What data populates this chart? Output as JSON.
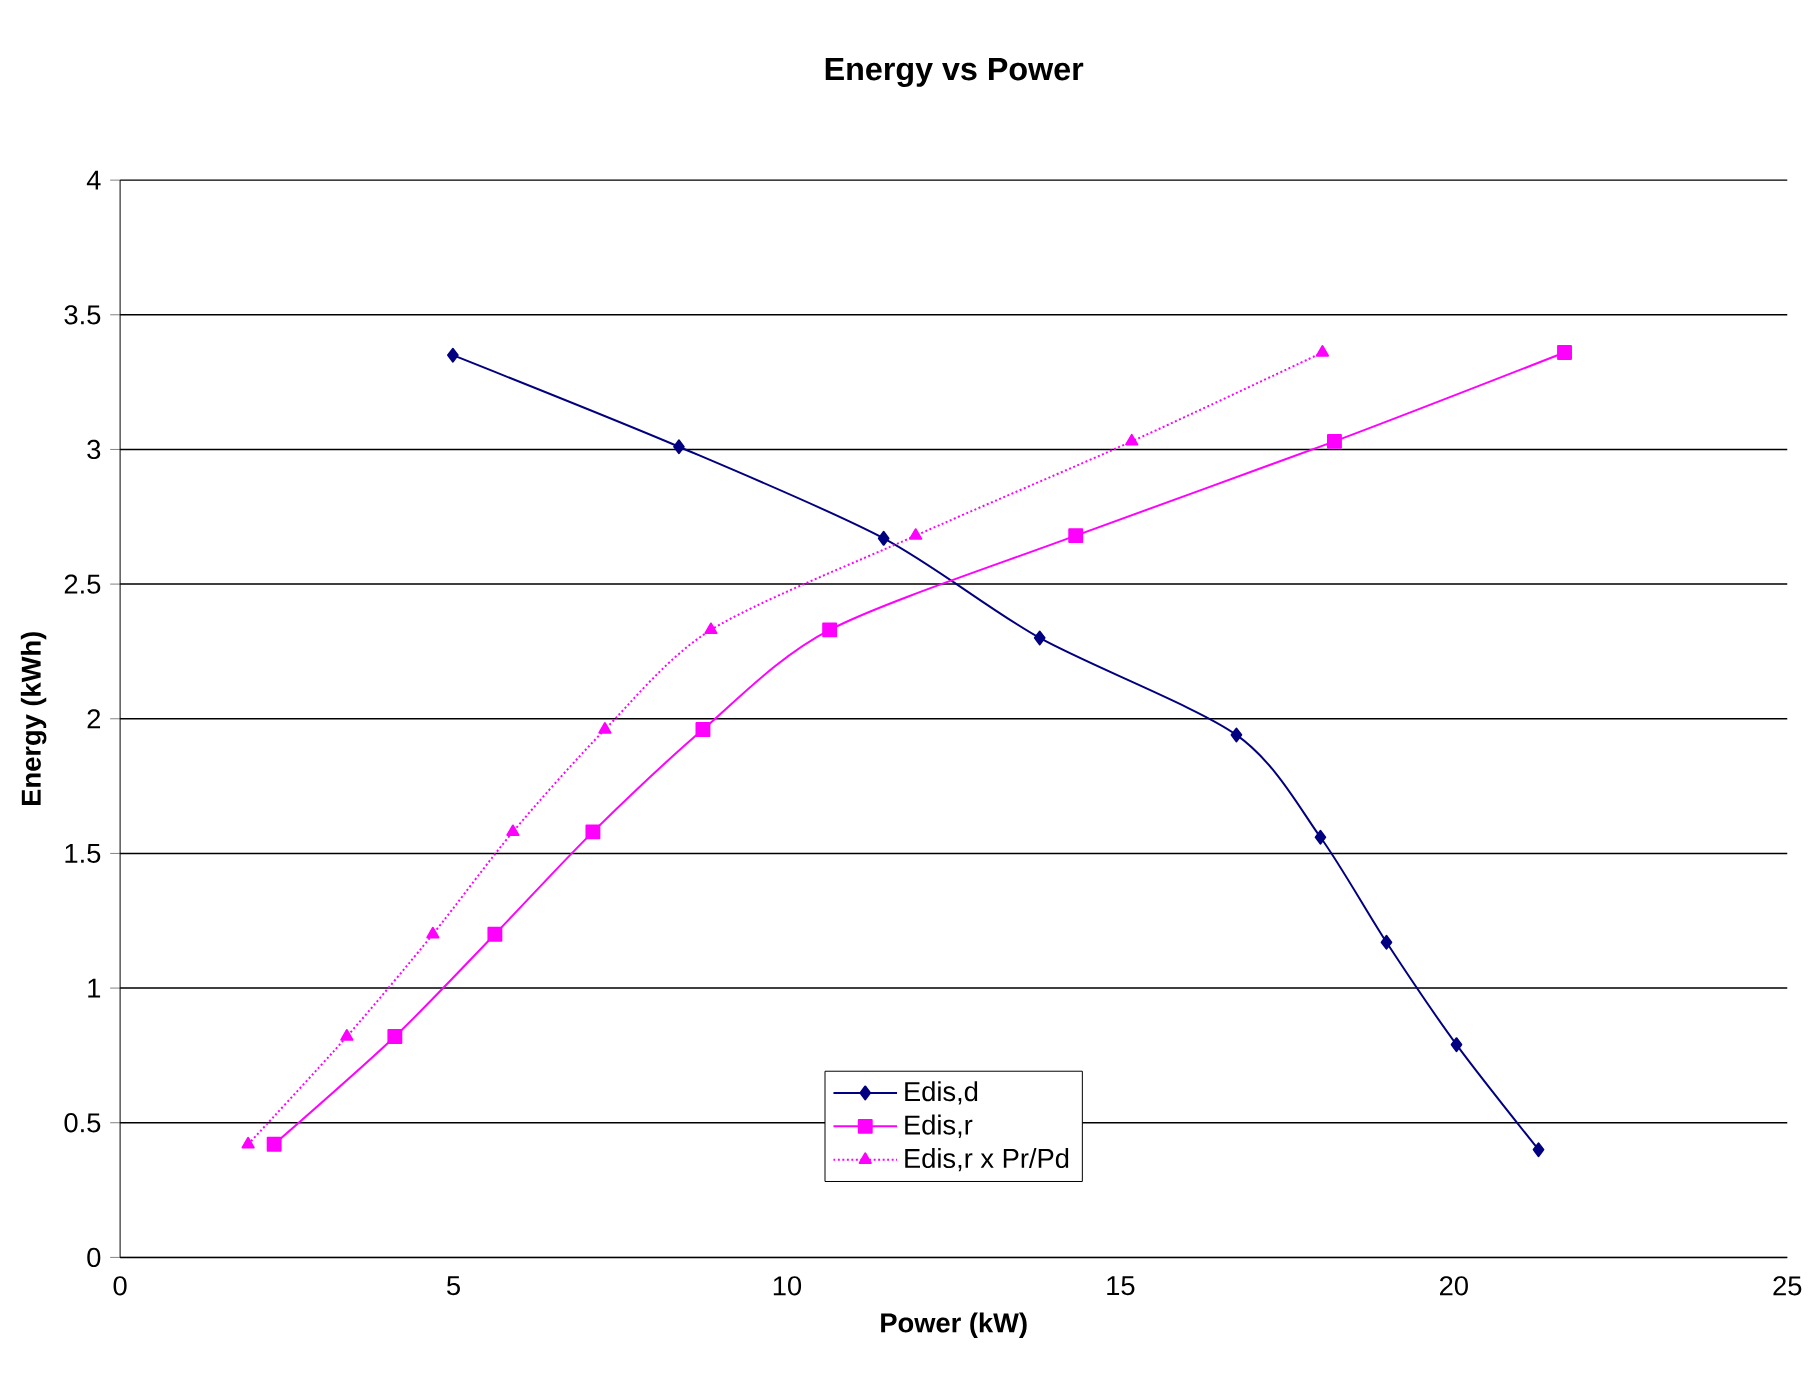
{
  "chart_data": {
    "type": "line",
    "title": "Energy vs Power",
    "xlabel": "Power (kW)",
    "ylabel": "Energy (kWh)",
    "xlim": [
      0,
      25
    ],
    "xticks": [
      0,
      5,
      10,
      15,
      20,
      25
    ],
    "ylim": [
      0,
      4
    ],
    "yticks": [
      0,
      0.5,
      1,
      1.5,
      2,
      2.5,
      3,
      3.5,
      4
    ],
    "grid": "y",
    "legend": "bottom",
    "series": [
      {
        "name": "Edis,d",
        "color": "#000080",
        "marker": "diamond",
        "line_style": "solid",
        "x": [
          4.99,
          8.38,
          11.45,
          13.79,
          16.74,
          18.0,
          18.99,
          20.04,
          21.27
        ],
        "values": [
          3.35,
          3.01,
          2.67,
          2.3,
          1.94,
          1.56,
          1.17,
          0.79,
          0.4
        ]
      },
      {
        "name": "Edis,r",
        "color": "#ff00ff",
        "marker": "square",
        "line_style": "solid",
        "x": [
          2.31,
          4.12,
          5.62,
          7.09,
          8.74,
          10.64,
          14.33,
          18.21,
          21.66
        ],
        "values": [
          0.42,
          0.82,
          1.2,
          1.58,
          1.96,
          2.33,
          2.68,
          3.03,
          3.36
        ]
      },
      {
        "name": "Edis,r x Pr/Pd",
        "color": "#ff00ff",
        "marker": "triangle",
        "line_style": "dotted",
        "x": [
          1.92,
          3.4,
          4.69,
          5.89,
          7.27,
          8.86,
          11.93,
          15.17,
          18.03
        ],
        "values": [
          0.42,
          0.82,
          1.2,
          1.58,
          1.96,
          2.33,
          2.68,
          3.03,
          3.36
        ]
      }
    ]
  }
}
